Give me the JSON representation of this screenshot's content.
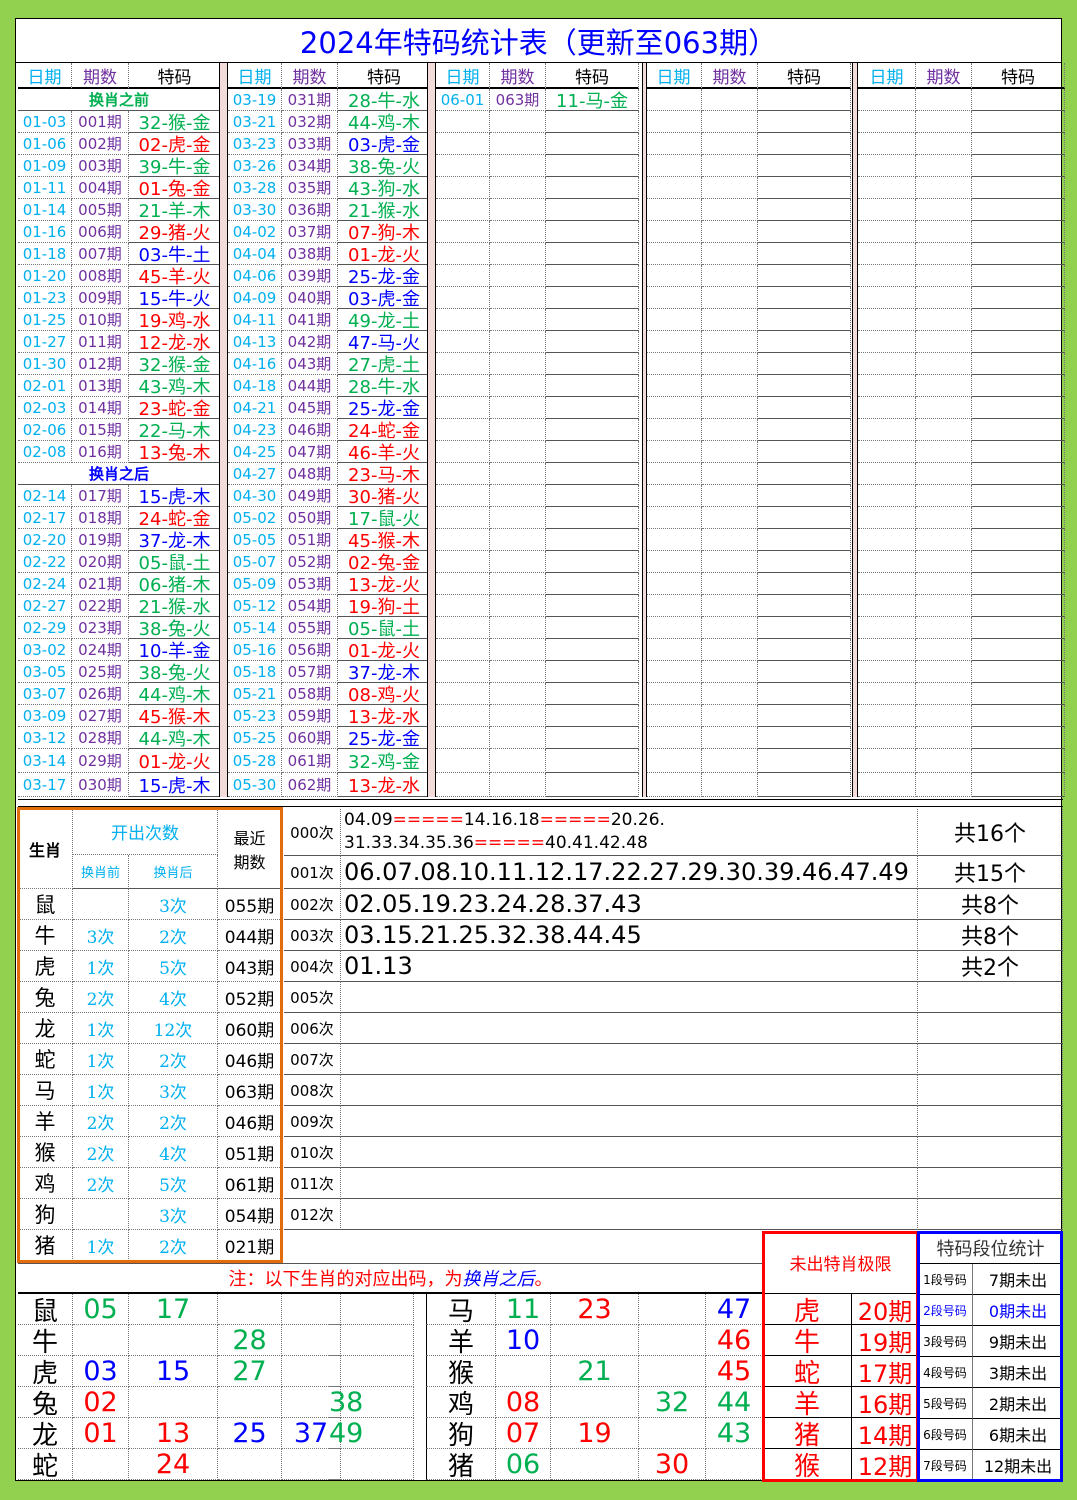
{
  "title": "2024年特码统计表（更新至063期）",
  "headers": {
    "date": "日期",
    "period": "期数",
    "code": "特码"
  },
  "section_labels": {
    "before": "换肖之前",
    "after": "换肖之后"
  },
  "colors": {
    "green": "#00b050",
    "red": "#ff0000",
    "blue": "#0000ff",
    "date": "#00b0f0",
    "period": "#7030a0",
    "border_bg": "#92d050",
    "orange": "#e36c09"
  },
  "columns": [
    [
      [
        "label",
        "换肖之前",
        "g"
      ],
      [
        "01-03",
        "001期",
        "32-猴-金",
        "g"
      ],
      [
        "01-06",
        "002期",
        "02-虎-金",
        "r"
      ],
      [
        "01-09",
        "003期",
        "39-牛-金",
        "g"
      ],
      [
        "01-11",
        "004期",
        "01-兔-金",
        "r"
      ],
      [
        "01-14",
        "005期",
        "21-羊-木",
        "g"
      ],
      [
        "01-16",
        "006期",
        "29-猪-火",
        "r"
      ],
      [
        "01-18",
        "007期",
        "03-牛-土",
        "b"
      ],
      [
        "01-20",
        "008期",
        "45-羊-火",
        "r"
      ],
      [
        "01-23",
        "009期",
        "15-牛-火",
        "b"
      ],
      [
        "01-25",
        "010期",
        "19-鸡-水",
        "r"
      ],
      [
        "01-27",
        "011期",
        "12-龙-水",
        "r"
      ],
      [
        "01-30",
        "012期",
        "32-猴-金",
        "g"
      ],
      [
        "02-01",
        "013期",
        "43-鸡-木",
        "g"
      ],
      [
        "02-03",
        "014期",
        "23-蛇-金",
        "r"
      ],
      [
        "02-06",
        "015期",
        "22-马-木",
        "g"
      ],
      [
        "02-08",
        "016期",
        "13-兔-木",
        "r"
      ],
      [
        "label",
        "换肖之后",
        "b"
      ],
      [
        "02-14",
        "017期",
        "15-虎-木",
        "b"
      ],
      [
        "02-17",
        "018期",
        "24-蛇-金",
        "r"
      ],
      [
        "02-20",
        "019期",
        "37-龙-木",
        "b"
      ],
      [
        "02-22",
        "020期",
        "05-鼠-土",
        "g"
      ],
      [
        "02-24",
        "021期",
        "06-猪-木",
        "g"
      ],
      [
        "02-27",
        "022期",
        "21-猴-水",
        "g"
      ],
      [
        "02-29",
        "023期",
        "38-兔-火",
        "g"
      ],
      [
        "03-02",
        "024期",
        "10-羊-金",
        "b"
      ],
      [
        "03-05",
        "025期",
        "38-兔-火",
        "g"
      ],
      [
        "03-07",
        "026期",
        "44-鸡-木",
        "g"
      ],
      [
        "03-09",
        "027期",
        "45-猴-木",
        "r"
      ],
      [
        "03-12",
        "028期",
        "44-鸡-木",
        "g"
      ],
      [
        "03-14",
        "029期",
        "01-龙-火",
        "r"
      ],
      [
        "03-17",
        "030期",
        "15-虎-木",
        "b"
      ]
    ],
    [
      [
        "03-19",
        "031期",
        "28-牛-水",
        "g"
      ],
      [
        "03-21",
        "032期",
        "44-鸡-木",
        "g"
      ],
      [
        "03-23",
        "033期",
        "03-虎-金",
        "b"
      ],
      [
        "03-26",
        "034期",
        "38-兔-火",
        "g"
      ],
      [
        "03-28",
        "035期",
        "43-狗-水",
        "g"
      ],
      [
        "03-30",
        "036期",
        "21-猴-水",
        "g"
      ],
      [
        "04-02",
        "037期",
        "07-狗-木",
        "r"
      ],
      [
        "04-04",
        "038期",
        "01-龙-火",
        "r"
      ],
      [
        "04-06",
        "039期",
        "25-龙-金",
        "b"
      ],
      [
        "04-09",
        "040期",
        "03-虎-金",
        "b"
      ],
      [
        "04-11",
        "041期",
        "49-龙-土",
        "g"
      ],
      [
        "04-13",
        "042期",
        "47-马-火",
        "b"
      ],
      [
        "04-16",
        "043期",
        "27-虎-土",
        "g"
      ],
      [
        "04-18",
        "044期",
        "28-牛-水",
        "g"
      ],
      [
        "04-21",
        "045期",
        "25-龙-金",
        "b"
      ],
      [
        "04-23",
        "046期",
        "24-蛇-金",
        "r"
      ],
      [
        "04-25",
        "047期",
        "46-羊-火",
        "r"
      ],
      [
        "04-27",
        "048期",
        "23-马-木",
        "r"
      ],
      [
        "04-30",
        "049期",
        "30-猪-火",
        "r"
      ],
      [
        "05-02",
        "050期",
        "17-鼠-火",
        "g"
      ],
      [
        "05-05",
        "051期",
        "45-猴-木",
        "r"
      ],
      [
        "05-07",
        "052期",
        "02-兔-金",
        "r"
      ],
      [
        "05-09",
        "053期",
        "13-龙-火",
        "r"
      ],
      [
        "05-12",
        "054期",
        "19-狗-土",
        "r"
      ],
      [
        "05-14",
        "055期",
        "05-鼠-土",
        "g"
      ],
      [
        "05-16",
        "056期",
        "01-龙-火",
        "r"
      ],
      [
        "05-18",
        "057期",
        "37-龙-木",
        "b"
      ],
      [
        "05-21",
        "058期",
        "08-鸡-火",
        "r"
      ],
      [
        "05-23",
        "059期",
        "13-龙-水",
        "r"
      ],
      [
        "05-25",
        "060期",
        "25-龙-金",
        "b"
      ],
      [
        "05-28",
        "061期",
        "32-鸡-金",
        "g"
      ],
      [
        "05-30",
        "062期",
        "13-龙-水",
        "r"
      ]
    ],
    [
      [
        "06-01",
        "063期",
        "11-马-金",
        "g"
      ]
    ],
    [],
    []
  ],
  "zodiac_stats": {
    "headers": {
      "zodiac": "生肖",
      "count": "开出次数",
      "before": "换肖前",
      "after": "换肖后",
      "recent": "最近期数"
    },
    "rows": [
      [
        "鼠",
        "",
        "3次",
        "055期"
      ],
      [
        "牛",
        "3次",
        "2次",
        "044期"
      ],
      [
        "虎",
        "1次",
        "5次",
        "043期"
      ],
      [
        "兔",
        "2次",
        "4次",
        "052期"
      ],
      [
        "龙",
        "1次",
        "12次",
        "060期"
      ],
      [
        "蛇",
        "1次",
        "2次",
        "046期"
      ],
      [
        "马",
        "1次",
        "3次",
        "063期"
      ],
      [
        "羊",
        "2次",
        "2次",
        "046期"
      ],
      [
        "猴",
        "2次",
        "4次",
        "051期"
      ],
      [
        "鸡",
        "2次",
        "5次",
        "061期"
      ],
      [
        "狗",
        "",
        "3次",
        "054期"
      ],
      [
        "猪",
        "1次",
        "2次",
        "021期"
      ]
    ]
  },
  "frequency": {
    "rows": [
      {
        "label": "000次",
        "segments": [
          [
            "04.09",
            "k"
          ],
          [
            "=====",
            "r"
          ],
          [
            "14.16.18",
            "k"
          ],
          [
            "=====",
            "r"
          ],
          [
            "20.26.",
            "k"
          ]
        ],
        "segments2": [
          [
            "31.33.34.35.36",
            "k"
          ],
          [
            "=====",
            "r"
          ],
          [
            "40.41.42.48",
            "k"
          ]
        ],
        "total": "共16个"
      },
      {
        "label": "001次",
        "numbers": "06.07.08.10.11.12.17.22.27.29.30.39.46.47.49",
        "total": "共15个"
      },
      {
        "label": "002次",
        "numbers": "02.05.19.23.24.28.37.43",
        "total": "共8个"
      },
      {
        "label": "003次",
        "numbers": "03.15.21.25.32.38.44.45",
        "total": "共8个"
      },
      {
        "label": "004次",
        "numbers": "01.13",
        "total": "共2个"
      },
      {
        "label": "005次"
      },
      {
        "label": "006次"
      },
      {
        "label": "007次"
      },
      {
        "label": "008次"
      },
      {
        "label": "009次"
      },
      {
        "label": "010次"
      },
      {
        "label": "011次"
      },
      {
        "label": "012次"
      }
    ]
  },
  "note": {
    "prefix": "注：以下生肖的对应出码，为",
    "emphasis": "换肖之后",
    "suffix": "。"
  },
  "mapping_left": [
    [
      "鼠",
      [
        [
          "05",
          "g"
        ],
        [
          "17",
          "g"
        ],
        [
          "",
          ""
        ],
        [
          "",
          ""
        ],
        [
          "",
          ""
        ]
      ]
    ],
    [
      "牛",
      [
        [
          "",
          ""
        ],
        [
          "",
          ""
        ],
        [
          "28",
          "g"
        ],
        [
          "",
          ""
        ],
        [
          "",
          ""
        ]
      ]
    ],
    [
      "虎",
      [
        [
          "03",
          "b"
        ],
        [
          "15",
          "b"
        ],
        [
          "27",
          "g"
        ],
        [
          "",
          ""
        ],
        [
          "",
          ""
        ]
      ]
    ],
    [
      "兔",
      [
        [
          "02",
          "r"
        ],
        [
          "",
          ""
        ],
        [
          "",
          ""
        ],
        [
          "",
          ""
        ],
        [
          "38",
          "g"
        ]
      ]
    ],
    [
      "龙",
      [
        [
          "01",
          "r"
        ],
        [
          "13",
          "r"
        ],
        [
          "25",
          "b"
        ],
        [
          "37",
          "b"
        ],
        [
          "49",
          "g"
        ]
      ]
    ],
    [
      "蛇",
      [
        [
          "",
          ""
        ],
        [
          "24",
          "r"
        ],
        [
          "",
          ""
        ],
        [
          "",
          ""
        ],
        [
          "",
          ""
        ]
      ]
    ]
  ],
  "mapping_right": [
    [
      "马",
      [
        [
          "11",
          "g"
        ],
        [
          "23",
          "r"
        ],
        [
          "",
          ""
        ],
        [
          "47",
          "b"
        ]
      ]
    ],
    [
      "羊",
      [
        [
          "10",
          "b"
        ],
        [
          "",
          ""
        ],
        [
          "",
          ""
        ],
        [
          "46",
          "r"
        ]
      ]
    ],
    [
      "猴",
      [
        [
          "",
          ""
        ],
        [
          "21",
          "g"
        ],
        [
          "",
          ""
        ],
        [
          "45",
          "r"
        ]
      ]
    ],
    [
      "鸡",
      [
        [
          "08",
          "r"
        ],
        [
          "",
          ""
        ],
        [
          "32",
          "g"
        ],
        [
          "44",
          "g"
        ]
      ]
    ],
    [
      "狗",
      [
        [
          "07",
          "r"
        ],
        [
          "19",
          "r"
        ],
        [
          "",
          ""
        ],
        [
          "43",
          "g"
        ]
      ]
    ],
    [
      "猪",
      [
        [
          "06",
          "g"
        ],
        [
          "",
          ""
        ],
        [
          "30",
          "r"
        ],
        [
          "",
          ""
        ]
      ]
    ]
  ],
  "missing_limit": {
    "title": "未出特肖极限",
    "rows": [
      [
        "虎",
        "20期"
      ],
      [
        "牛",
        "19期"
      ],
      [
        "蛇",
        "17期"
      ],
      [
        "羊",
        "16期"
      ],
      [
        "猪",
        "14期"
      ],
      [
        "猴",
        "12期"
      ]
    ]
  },
  "segment_stats": {
    "title": "特码段位统计",
    "rows": [
      [
        "1段号码",
        "7期未出",
        "k"
      ],
      [
        "2段号码",
        "0期未出",
        "b"
      ],
      [
        "3段号码",
        "9期未出",
        "k"
      ],
      [
        "4段号码",
        "3期未出",
        "k"
      ],
      [
        "5段号码",
        "2期未出",
        "k"
      ],
      [
        "6段号码",
        "6期未出",
        "k"
      ],
      [
        "7段号码",
        "12期未出",
        "k"
      ]
    ]
  }
}
